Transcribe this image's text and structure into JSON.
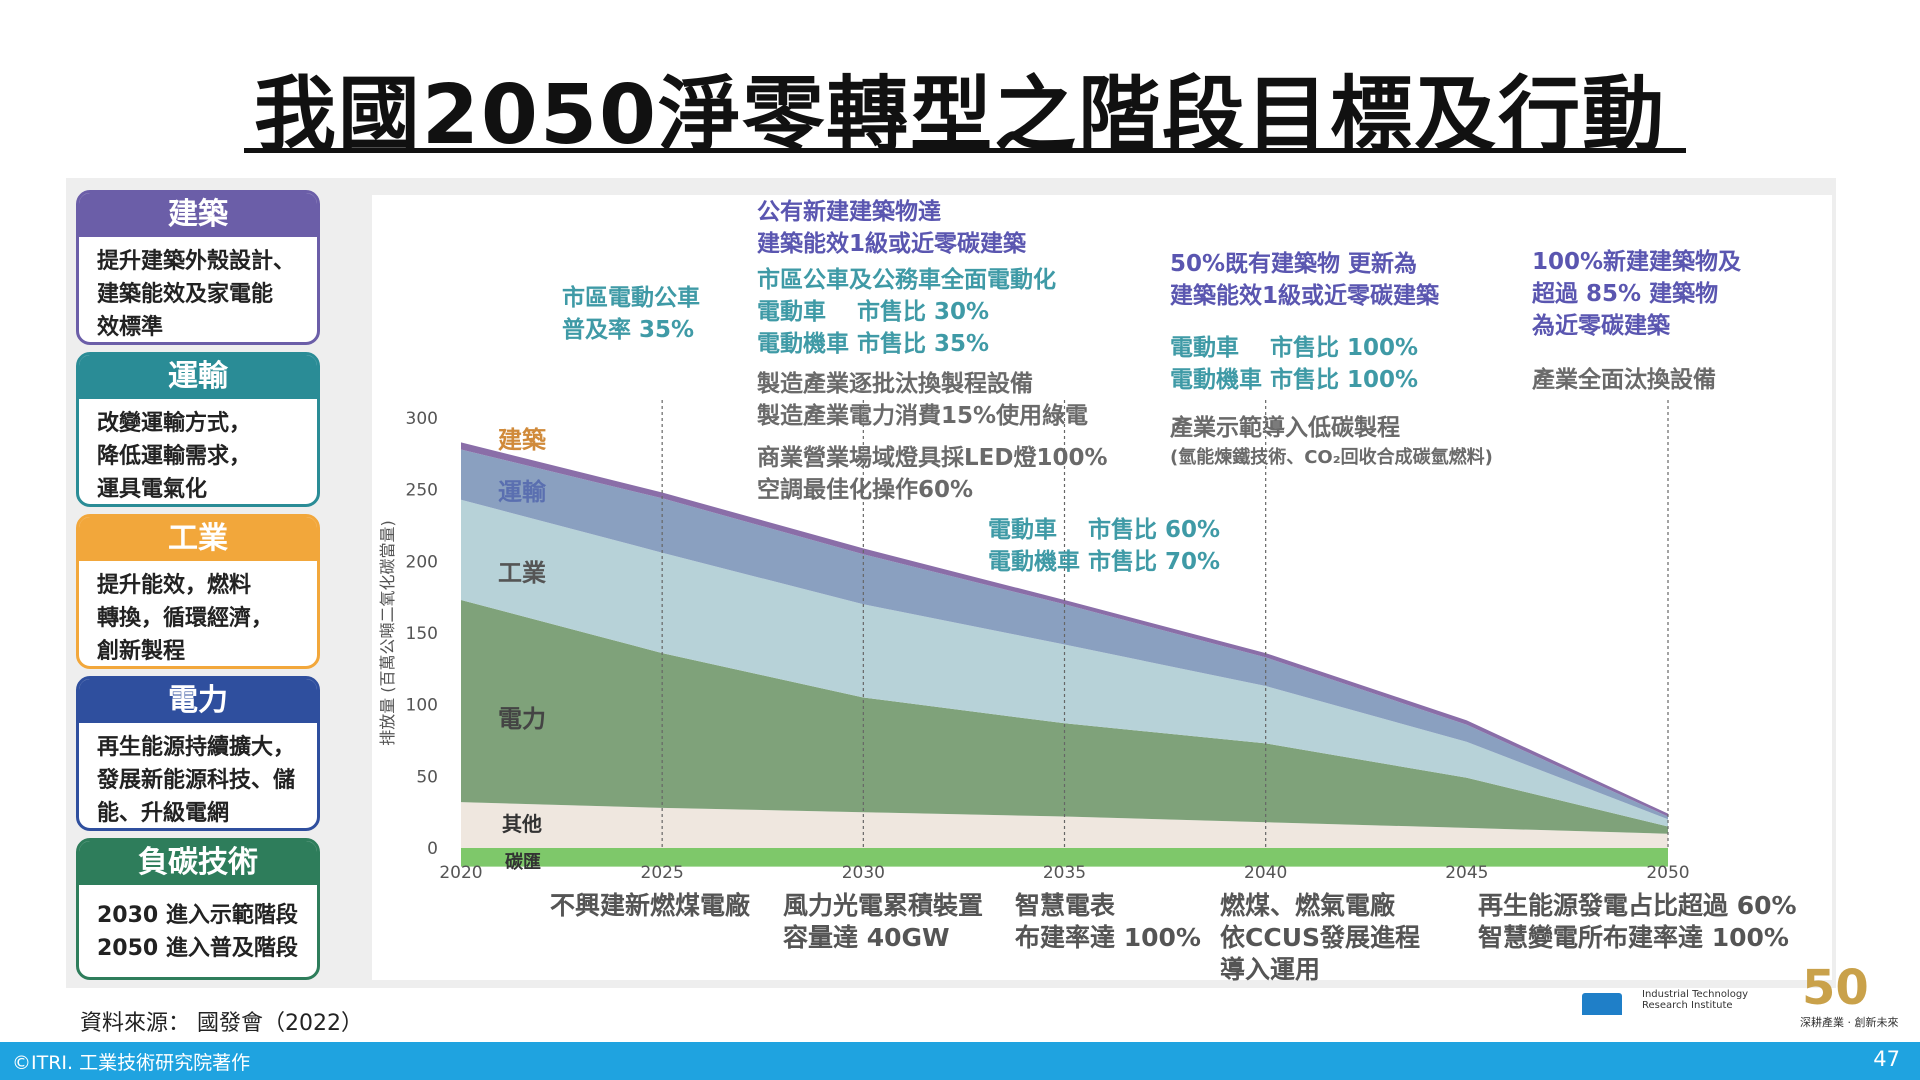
{
  "page": {
    "title": "我國2050淨零轉型之階段目標及行動",
    "source": "資料來源： 國發會（2022）",
    "footer_left": "©ITRI. 工業技術研究院著作",
    "page_number": "47"
  },
  "sectors": [
    {
      "title": "建築",
      "color": "#6b5ea8",
      "body": [
        "提升建築外殼設計、",
        "建築能效及家電能",
        "效標準"
      ]
    },
    {
      "title": "運輸",
      "color": "#2a8c96",
      "body": [
        "改變運輸方式，",
        "降低運輸需求，",
        "運具電氣化"
      ]
    },
    {
      "title": "工業",
      "color": "#f2a73b",
      "body": [
        "提升能效，燃料",
        "轉換，循環經濟，",
        "創新製程"
      ]
    },
    {
      "title": "電力",
      "color": "#2f4f9e",
      "body": [
        "再生能源持續擴大，",
        "發展新能源科技、儲",
        "能、升級電網"
      ]
    },
    {
      "title": "負碳技術",
      "color": "#2e7d5b",
      "body": [
        "2030 進入示範階段",
        "2050 進入普及階段"
      ]
    }
  ],
  "annotations": {
    "a2025": [
      "市區電動公車",
      "普及率 35%"
    ],
    "a2030_building": [
      "公有新建建築物達",
      "建築能效1級或近零碳建築"
    ],
    "a2030_transport": [
      "市區公車及公務車全面電動化",
      "電動車　 市售比 30%",
      "電動機車 市售比 35%"
    ],
    "a2030_industry": [
      "製造產業逐批汰換製程設備",
      "製造產業電力消費15%使用綠電"
    ],
    "a2030_commerce": [
      "商業營業場域燈具採LED燈100%",
      "空調最佳化操作60%"
    ],
    "a2035": [
      "電動車　 市售比 60%",
      "電動機車 市售比 70%"
    ],
    "a2040_building": [
      "50%既有建築物 更新為",
      "建築能效1級或近零碳建築"
    ],
    "a2040_transport": [
      "電動車　 市售比 100%",
      "電動機車 市售比 100%"
    ],
    "a2040_industry": "產業示範導入低碳製程",
    "a2040_industry_note": "(氫能煉鐵技術、CO₂回收合成碳氫燃料)",
    "a2050_building": [
      "100%新建建築物及",
      "超過 85% 建築物",
      "為近零碳建築"
    ],
    "a2050_industry": "產業全面汰換設備"
  },
  "bottom_annotations": {
    "b2025": [
      "不興建新燃煤電廠"
    ],
    "b2030": [
      "風力光電累積裝置",
      "容量達 40GW"
    ],
    "b2035": [
      "智慧電表",
      "布建率達 100%"
    ],
    "b2040": [
      "燃煤、燃氣電廠",
      "依CCUS發展進程",
      "導入運用"
    ],
    "b2050": [
      "再生能源發電占比超過 60%",
      "智慧變電所布建率達 100%"
    ]
  },
  "logos": {
    "itri_text": [
      "Industrial Technology",
      "Research Institute"
    ],
    "fifty": "50",
    "fifty_caption": "深耕產業 · 創新未來"
  },
  "chart_data": {
    "type": "area",
    "stacked": true,
    "x": [
      2020,
      2025,
      2030,
      2035,
      2040,
      2045,
      2050
    ],
    "xlim": [
      2020,
      2050
    ],
    "ylim": [
      0,
      300
    ],
    "yticks": [
      0,
      50,
      100,
      150,
      200,
      250,
      300
    ],
    "ylabel": "排放量 (百萬公噸二氧化碳當量)",
    "grid": false,
    "vertical_markers": [
      2025,
      2030,
      2035,
      2040,
      2050
    ],
    "series": [
      {
        "name": "碳匯",
        "values": [
          -13,
          -13,
          -13,
          -13,
          -13,
          -13,
          -13
        ],
        "color": "#7ec86a"
      },
      {
        "name": "其他",
        "values": [
          32,
          28,
          25,
          22,
          18,
          14,
          10
        ],
        "color": "#efe7df"
      },
      {
        "name": "電力",
        "values": [
          141,
          108,
          80,
          65,
          55,
          35,
          5
        ],
        "color": "#7fa27a"
      },
      {
        "name": "工業",
        "values": [
          70,
          70,
          65,
          55,
          40,
          25,
          5
        ],
        "color": "#b7d2d8"
      },
      {
        "name": "運輸",
        "values": [
          35,
          38,
          35,
          28,
          20,
          12,
          2
        ],
        "color": "#8aa0c0"
      },
      {
        "name": "建築",
        "values": [
          5,
          4,
          4,
          3,
          3,
          3,
          2
        ],
        "color": "#8a6ea8"
      }
    ]
  }
}
